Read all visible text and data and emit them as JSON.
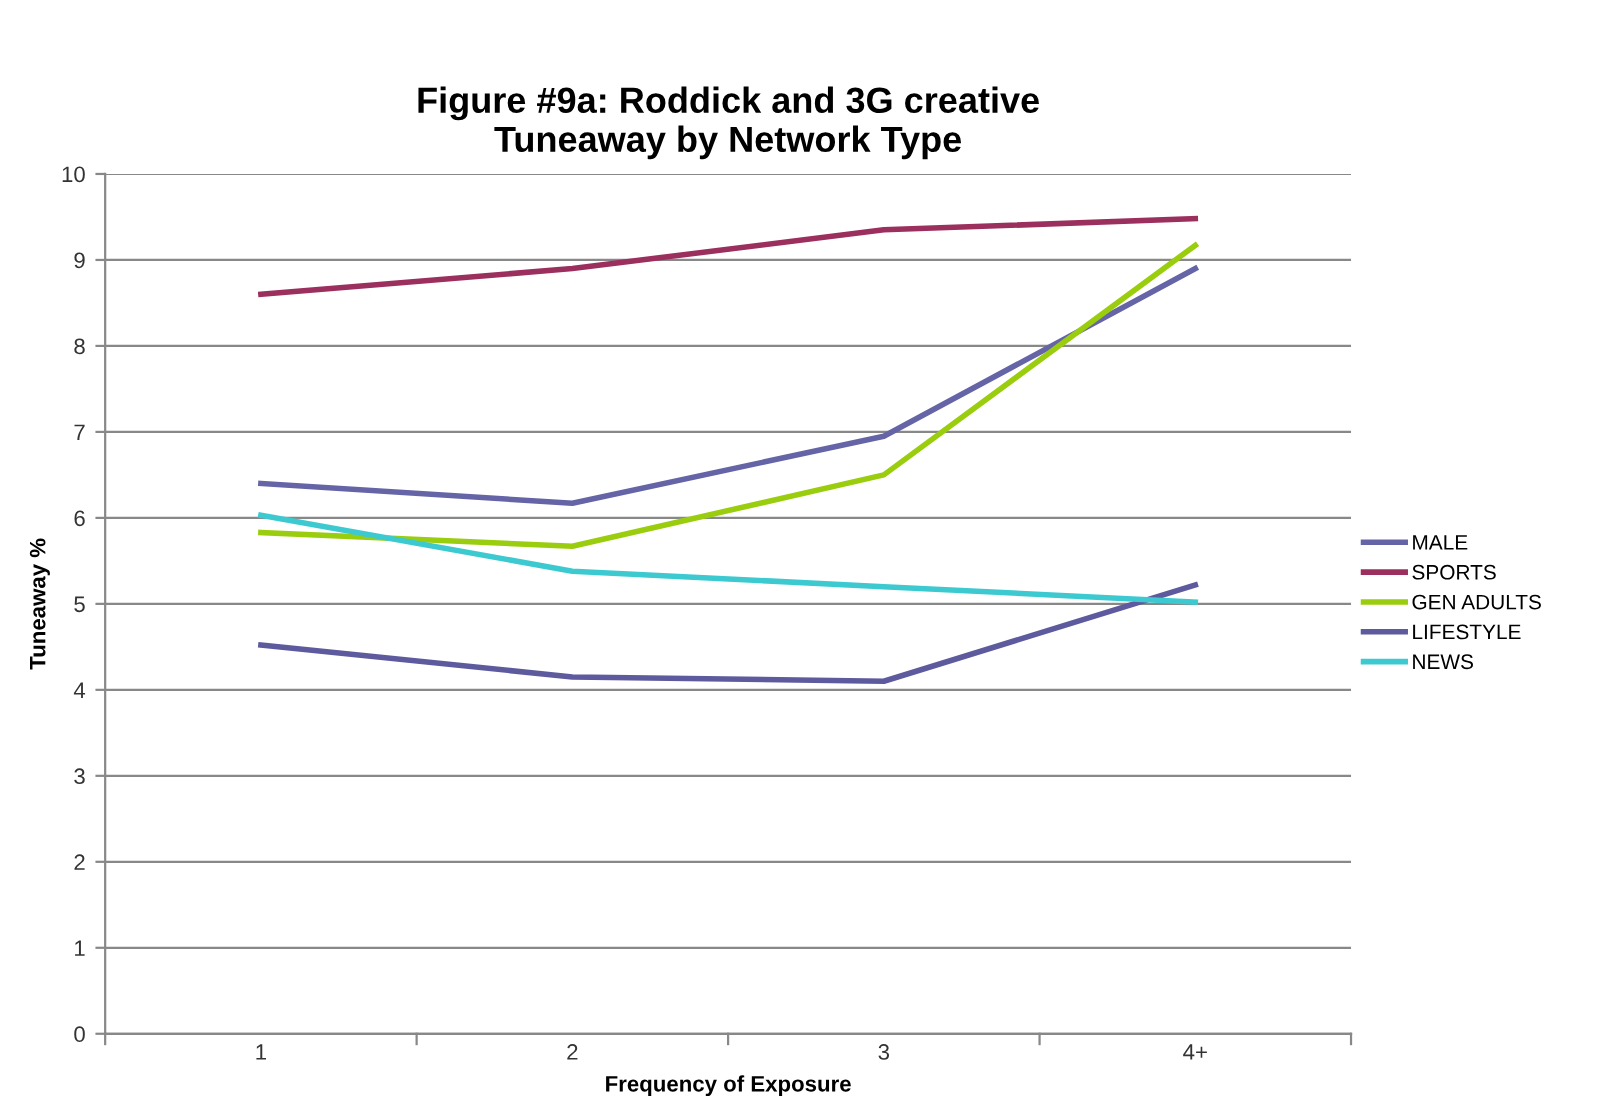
{
  "chart_data": {
    "type": "line",
    "title": "Figure #9a: Roddick and 3G creative\nTuneaway by Network Type",
    "xlabel": "Frequency of Exposure",
    "ylabel": "Tuneaway %",
    "categories": [
      "1",
      "2",
      "3",
      "4+"
    ],
    "series": [
      {
        "name": "MALE",
        "color": "#6464a6",
        "values": [
          6.4,
          6.17,
          6.95,
          8.9
        ]
      },
      {
        "name": "SPORTS",
        "color": "#9b2f5d",
        "values": [
          8.6,
          8.9,
          9.35,
          9.48
        ]
      },
      {
        "name": "GEN ADULTS",
        "color": "#9acd0e",
        "values": [
          5.83,
          5.67,
          6.5,
          9.17
        ]
      },
      {
        "name": "LIFESTYLE",
        "color": "#5e5a9e",
        "values": [
          4.52,
          4.15,
          4.1,
          5.22
        ]
      },
      {
        "name": "NEWS",
        "color": "#3ccad0",
        "values": [
          6.03,
          5.38,
          5.2,
          5.02
        ]
      }
    ],
    "ylim": [
      0,
      10
    ],
    "yticks": [
      0,
      1,
      2,
      3,
      4,
      5,
      6,
      7,
      8,
      9,
      10
    ],
    "grid": "y",
    "legend": "right",
    "marker": "none",
    "line_style": "solid"
  }
}
